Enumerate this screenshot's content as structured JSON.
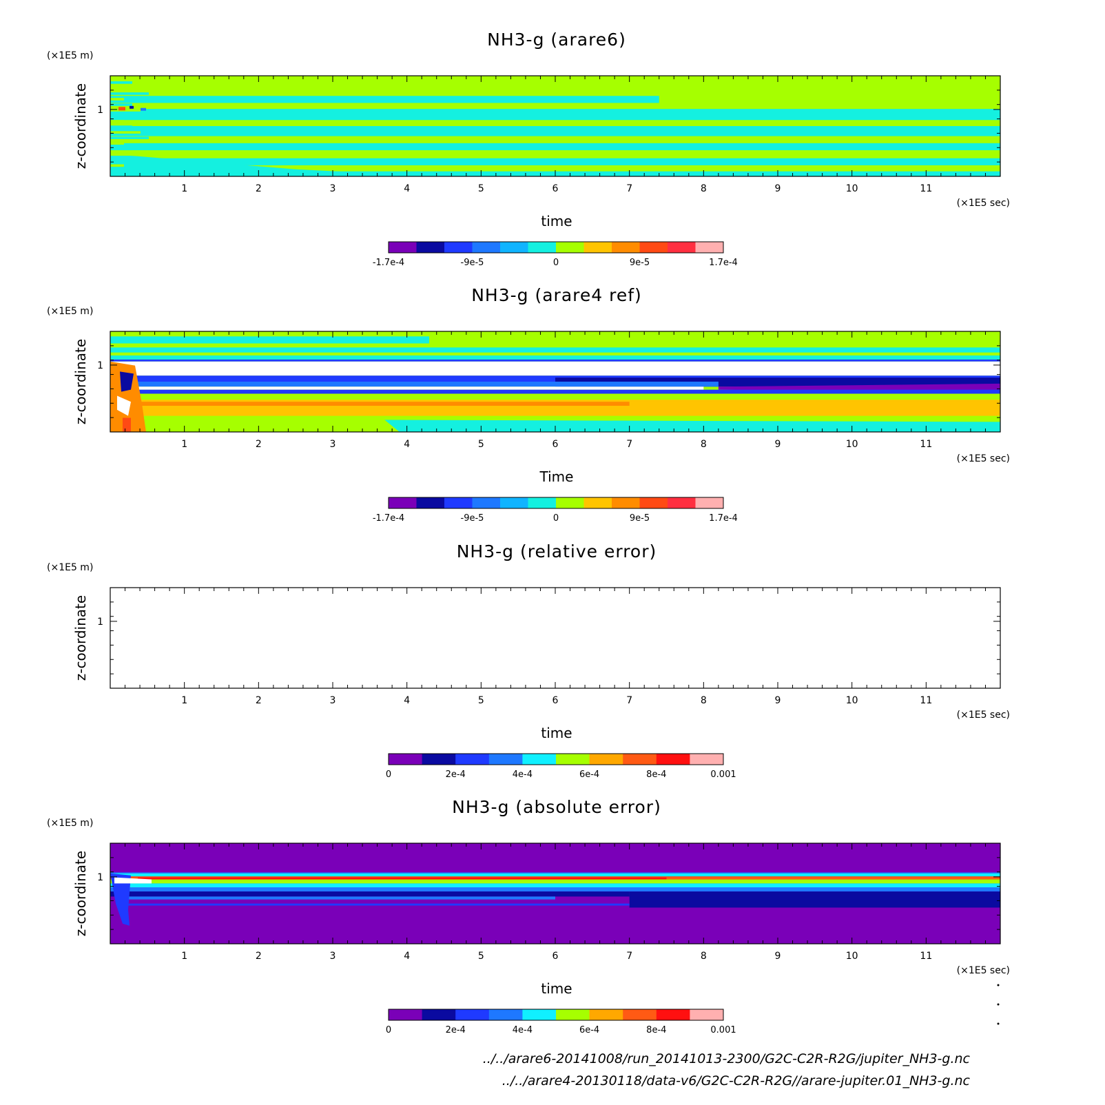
{
  "colors": {
    "diverging": [
      "#7a00b8",
      "#0a0aa0",
      "#1f3aff",
      "#1e78ff",
      "#10b4ff",
      "#14f0e0",
      "#a6ff00",
      "#ffc400",
      "#ff8c00",
      "#ff4a14",
      "#ff2f40",
      "#ffb0b0"
    ],
    "sequential": [
      "#7a00b8",
      "#0a0aa0",
      "#1f3aff",
      "#1e78ff",
      "#10f0ff",
      "#a6ff00",
      "#ffa800",
      "#ff5a14",
      "#ff1010",
      "#ffb0b0"
    ]
  },
  "footer": {
    "line1": "../../arare6-20141008/run_20141013-2300/G2C-C2R-R2G/jupiter_NH3-g.nc",
    "line2": "../../arare4-20130118/data-v6/G2C-C2R-R2G//arare-jupiter.01_NH3-g.nc"
  },
  "chart_data": [
    {
      "type": "heatmap",
      "title": "NH3-g (arare6)",
      "xlabel": "time",
      "ylabel": "z-coordinate",
      "xunit": "(×1E5 sec)",
      "yunit": "(×1E5 m)",
      "xlim": [
        0,
        12
      ],
      "x_ticks": [
        "1",
        "2",
        "3",
        "4",
        "5",
        "6",
        "7",
        "8",
        "9",
        "10",
        "11"
      ],
      "y_ticks": [
        "1"
      ],
      "colorbar": {
        "scale": "diverging",
        "labels": [
          "-1.7e-4",
          "-9e-5",
          "0",
          "9e-5",
          "1.7e-4"
        ]
      },
      "field": "arare6"
    },
    {
      "type": "heatmap",
      "title": "NH3-g (arare4 ref)",
      "xlabel": "Time",
      "ylabel": "z-coordinate",
      "xunit": "(×1E5 sec)",
      "yunit": "(×1E5 m)",
      "xlim": [
        0,
        12
      ],
      "x_ticks": [
        "1",
        "2",
        "3",
        "4",
        "5",
        "6",
        "7",
        "8",
        "9",
        "10",
        "11"
      ],
      "y_ticks": [
        "1"
      ],
      "colorbar": {
        "scale": "diverging",
        "labels": [
          "-1.7e-4",
          "-9e-5",
          "0",
          "9e-5",
          "1.7e-4"
        ]
      },
      "field": "arare4"
    },
    {
      "type": "heatmap",
      "title": "NH3-g (relative error)",
      "xlabel": "time",
      "ylabel": "z-coordinate",
      "xunit": "(×1E5 sec)",
      "yunit": "(×1E5 m)",
      "xlim": [
        0,
        12
      ],
      "x_ticks": [
        "1",
        "2",
        "3",
        "4",
        "5",
        "6",
        "7",
        "8",
        "9",
        "10",
        "11"
      ],
      "y_ticks": [
        "1"
      ],
      "colorbar": {
        "scale": "sequential",
        "labels": [
          "0",
          "2e-4",
          "4e-4",
          "6e-4",
          "8e-4",
          "0.001"
        ]
      },
      "field": "empty"
    },
    {
      "type": "heatmap",
      "title": "NH3-g (absolute error)",
      "xlabel": "time",
      "ylabel": "z-coordinate",
      "xunit": "(×1E5 sec)",
      "yunit": "(×1E5 m)",
      "xlim": [
        0,
        12
      ],
      "x_ticks": [
        "1",
        "2",
        "3",
        "4",
        "5",
        "6",
        "7",
        "8",
        "9",
        "10",
        "11"
      ],
      "y_ticks": [
        "1"
      ],
      "colorbar": {
        "scale": "sequential",
        "labels": [
          "0",
          "2e-4",
          "4e-4",
          "6e-4",
          "8e-4",
          "0.001"
        ]
      },
      "field": "abserr"
    }
  ]
}
